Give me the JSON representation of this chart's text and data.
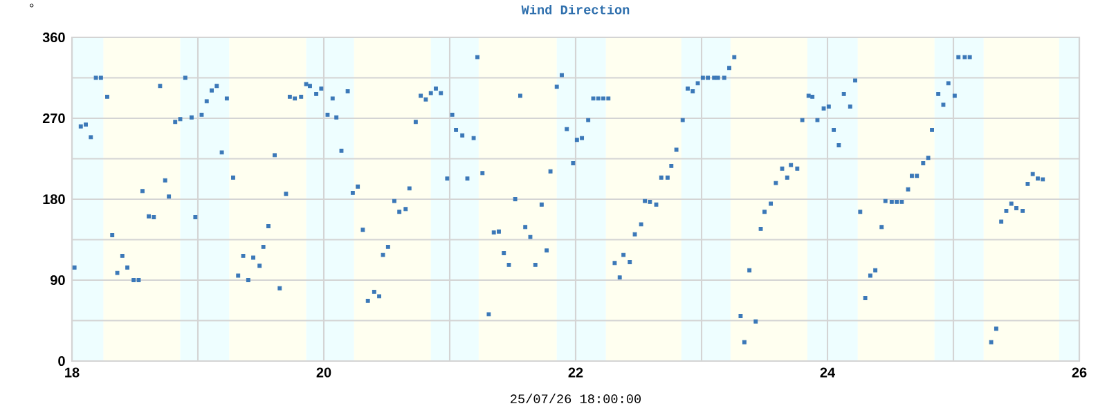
{
  "chart_data": {
    "type": "scatter",
    "title": "Wind Direction",
    "xlabel": "25/07/26 18:00:00",
    "ylabel": "°",
    "color": "#3b78b8",
    "marker": "square",
    "grid": true,
    "xlim": [
      18,
      26
    ],
    "ylim": [
      0,
      360
    ],
    "xticks": [
      18,
      {
        "value": 19,
        "label": null
      },
      20,
      {
        "value": 21,
        "label": null
      },
      22,
      {
        "value": 23,
        "label": null
      },
      24,
      {
        "value": 25,
        "label": null
      },
      26
    ],
    "yticks": [
      0,
      {
        "value": 45,
        "label": null
      },
      90,
      {
        "value": 135,
        "label": null
      },
      180,
      {
        "value": 225,
        "label": null
      },
      270,
      {
        "value": 315,
        "label": null
      },
      360
    ],
    "bands": [
      {
        "axis": "x",
        "from": 18,
        "to": 18.25,
        "color": "#eefeff"
      },
      {
        "axis": "x",
        "from": 18.25,
        "to": 18.86,
        "color": "#fffff0"
      },
      {
        "axis": "x",
        "from": 18.86,
        "to": 19.25,
        "color": "#eefeff"
      },
      {
        "axis": "x",
        "from": 19.25,
        "to": 19.86,
        "color": "#fffff0"
      },
      {
        "axis": "x",
        "from": 19.86,
        "to": 20.24,
        "color": "#eefeff"
      },
      {
        "axis": "x",
        "from": 20.24,
        "to": 20.85,
        "color": "#fffff0"
      },
      {
        "axis": "x",
        "from": 20.85,
        "to": 21.23,
        "color": "#eefeff"
      },
      {
        "axis": "x",
        "from": 21.23,
        "to": 21.85,
        "color": "#fffff0"
      },
      {
        "axis": "x",
        "from": 21.85,
        "to": 22.24,
        "color": "#eefeff"
      },
      {
        "axis": "x",
        "from": 22.24,
        "to": 22.84,
        "color": "#fffff0"
      },
      {
        "axis": "x",
        "from": 22.84,
        "to": 23.23,
        "color": "#eefeff"
      },
      {
        "axis": "x",
        "from": 23.23,
        "to": 23.84,
        "color": "#fffff0"
      },
      {
        "axis": "x",
        "from": 23.84,
        "to": 24.24,
        "color": "#eefeff"
      },
      {
        "axis": "x",
        "from": 24.24,
        "to": 24.85,
        "color": "#fffff0"
      },
      {
        "axis": "x",
        "from": 24.85,
        "to": 25.24,
        "color": "#eefeff"
      },
      {
        "axis": "x",
        "from": 25.24,
        "to": 25.84,
        "color": "#fffff0"
      },
      {
        "axis": "x",
        "from": 25.84,
        "to": 26,
        "color": "#eefeff"
      }
    ],
    "x": [
      18.02,
      18.07,
      18.11,
      18.15,
      18.19,
      18.23,
      18.28,
      18.32,
      18.36,
      18.4,
      18.44,
      18.49,
      18.53,
      18.56,
      18.61,
      18.65,
      18.7,
      18.74,
      18.77,
      18.82,
      18.86,
      18.9,
      18.95,
      18.98,
      19.03,
      19.07,
      19.11,
      19.15,
      19.19,
      19.23,
      19.28,
      19.32,
      19.36,
      19.4,
      19.44,
      19.49,
      19.52,
      19.56,
      19.61,
      19.65,
      19.7,
      19.73,
      19.77,
      19.82,
      19.86,
      19.89,
      19.94,
      19.98,
      20.03,
      20.07,
      20.1,
      20.14,
      20.19,
      20.23,
      20.27,
      20.31,
      20.35,
      20.4,
      20.44,
      20.47,
      20.51,
      20.56,
      20.6,
      20.65,
      20.68,
      20.73,
      20.77,
      20.81,
      20.85,
      20.89,
      20.93,
      20.98,
      21.02,
      21.05,
      21.1,
      21.14,
      21.19,
      21.22,
      21.26,
      21.31,
      21.35,
      21.39,
      21.43,
      21.47,
      21.52,
      21.56,
      21.6,
      21.64,
      21.68,
      21.73,
      21.77,
      21.8,
      21.85,
      21.89,
      21.93,
      21.98,
      22.01,
      22.05,
      22.1,
      22.14,
      22.18,
      22.22,
      22.26,
      22.31,
      22.35,
      22.38,
      22.43,
      22.47,
      22.52,
      22.55,
      22.59,
      22.64,
      22.68,
      22.73,
      22.76,
      22.8,
      22.85,
      22.89,
      22.93,
      22.97,
      23.01,
      23.05,
      23.1,
      23.13,
      23.18,
      23.22,
      23.26,
      23.31,
      23.34,
      23.38,
      23.43,
      23.47,
      23.5,
      23.55,
      23.59,
      23.64,
      23.68,
      23.71,
      23.76,
      23.8,
      23.85,
      23.88,
      23.92,
      23.97,
      24.01,
      24.05,
      24.09,
      24.13,
      24.18,
      24.22,
      24.26,
      24.3,
      24.34,
      24.38,
      24.43,
      24.46,
      24.51,
      24.55,
      24.59,
      24.64,
      24.67,
      24.71,
      24.76,
      24.8,
      24.83,
      24.88,
      24.92,
      24.96,
      25.01,
      25.04,
      25.09,
      25.13,
      25.3,
      25.34,
      25.38,
      25.42,
      25.46,
      25.5,
      25.55,
      25.59,
      25.63,
      25.67,
      25.71
    ],
    "values": [
      104,
      261,
      263,
      249,
      315,
      315,
      294,
      140,
      98,
      117,
      104,
      90,
      90,
      189,
      161,
      160,
      306,
      201,
      183,
      266,
      269,
      315,
      271,
      160,
      274,
      289,
      301,
      306,
      232,
      292,
      204,
      95,
      117,
      90,
      115,
      106,
      127,
      150,
      229,
      81,
      186,
      294,
      292,
      294,
      308,
      306,
      297,
      303,
      274,
      292,
      271,
      234,
      300,
      187,
      194,
      146,
      67,
      77,
      72,
      118,
      127,
      178,
      166,
      169,
      192,
      266,
      295,
      291,
      298,
      303,
      298,
      203,
      274,
      257,
      251,
      203,
      248,
      338,
      209,
      52,
      143,
      144,
      120,
      107,
      180,
      295,
      149,
      138,
      107,
      174,
      123,
      211,
      305,
      318,
      258,
      220,
      246,
      248,
      268,
      292,
      292,
      292,
      292,
      109,
      93,
      118,
      110,
      141,
      152,
      178,
      177,
      174,
      204,
      204,
      217,
      235,
      268,
      303,
      300,
      309,
      315,
      315,
      315,
      315,
      315,
      326,
      338,
      50,
      21,
      101,
      44,
      147,
      166,
      175,
      198,
      214,
      204,
      218,
      214,
      268,
      295,
      294,
      268,
      281,
      283,
      257,
      240,
      297,
      283,
      312,
      166,
      70,
      95,
      101,
      149,
      178,
      177,
      177,
      177,
      191,
      206,
      206,
      220,
      226,
      257,
      297,
      285,
      309,
      295,
      338,
      338,
      338,
      21,
      36,
      155,
      167,
      175,
      170,
      167,
      197,
      208,
      203,
      202
    ]
  }
}
